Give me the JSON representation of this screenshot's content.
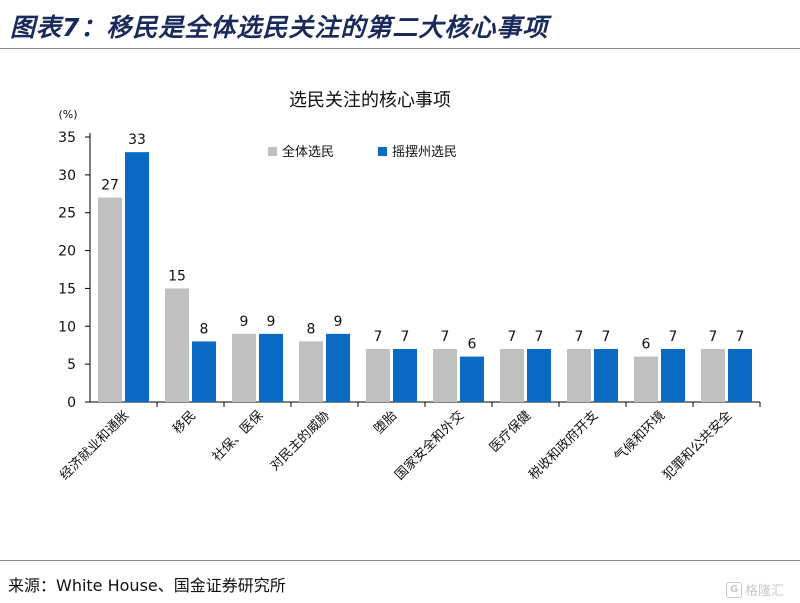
{
  "figure_title": "图表7：移民是全体选民关注的第二大核心事项",
  "source": "来源：White House、国金证券研究所",
  "watermark": "格隆汇",
  "colors": {
    "series1": "#c0c0c0",
    "series2": "#0a6bc4",
    "title": "#1a2a5a"
  },
  "chart_data": {
    "type": "bar",
    "title": "选民关注的核心事项",
    "ylabel": "(%)",
    "xlabel": "",
    "ylim": [
      0,
      35
    ],
    "yticks": [
      0,
      5,
      10,
      15,
      20,
      25,
      30,
      35
    ],
    "grid": false,
    "legend_position": "top-right",
    "categories": [
      "经济就业和通胀",
      "移民",
      "社保、医保",
      "对民主的威胁",
      "堕胎",
      "国家安全和外交",
      "医疗保健",
      "税收和政府开支",
      "气候和环境",
      "犯罪和公共安全"
    ],
    "series": [
      {
        "name": "全体选民",
        "values": [
          27,
          15,
          9,
          8,
          7,
          7,
          7,
          7,
          6,
          7
        ]
      },
      {
        "name": "摇摆州选民",
        "values": [
          33,
          8,
          9,
          9,
          7,
          6,
          7,
          7,
          7,
          7
        ]
      }
    ]
  }
}
